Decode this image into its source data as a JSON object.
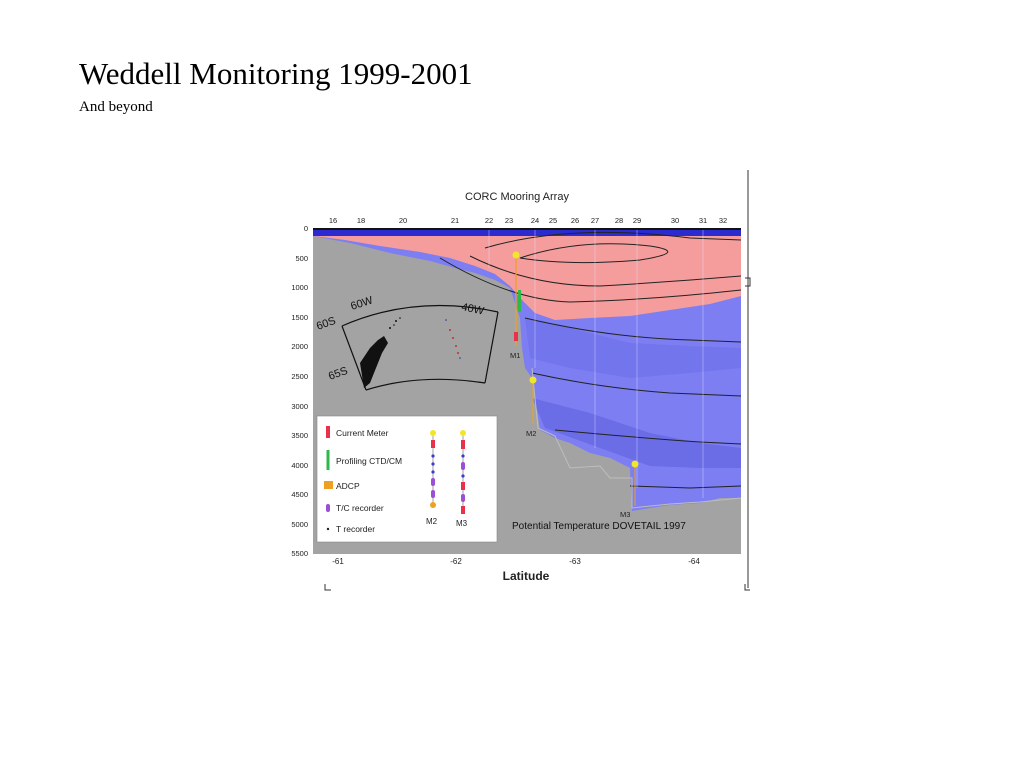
{
  "slide": {
    "title": "Weddell Monitoring 1999-2001",
    "subtitle": "And beyond"
  },
  "figure": {
    "title": "CORC Mooring Array",
    "caption": "Potential Temperature DOVETAIL 1997",
    "x_axis_label": "Latitude",
    "x_ticks": [
      "-61",
      "-62",
      "-63",
      "-64"
    ],
    "y_ticks": [
      "0",
      "500",
      "1000",
      "1500",
      "2000",
      "2500",
      "3000",
      "3500",
      "4000",
      "4500",
      "5000",
      "5500"
    ],
    "station_numbers": [
      "16",
      "18",
      "20",
      "21",
      "22",
      "23",
      "24",
      "25",
      "26",
      "27",
      "28",
      "29",
      "30",
      "31",
      "32"
    ],
    "moorings": [
      "M1",
      "M2",
      "M3"
    ],
    "inset_map": {
      "lon_labels": [
        "60W",
        "40W"
      ],
      "lat_labels": [
        "60S",
        "65S"
      ]
    },
    "legend": {
      "items": [
        {
          "label": "Current Meter",
          "color": "#e8314a"
        },
        {
          "label": "Profiling CTD/CM",
          "color": "#2db84a"
        },
        {
          "label": "ADCP",
          "color": "#f0a020"
        },
        {
          "label": "T/C recorder",
          "color": "#9a4fd6"
        },
        {
          "label": "T recorder",
          "color": "#222222"
        }
      ],
      "mooring_labels": [
        "M2",
        "M3"
      ]
    },
    "colors": {
      "warm_water": "#f79898",
      "cold_water": "#7a7af0",
      "bottom": "#a3a3a3",
      "surface_dark": "#2b2bd0"
    }
  }
}
